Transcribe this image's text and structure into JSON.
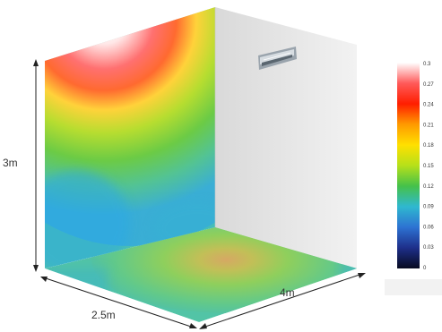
{
  "dimensions": {
    "height_label": "3m",
    "width_label": "2.5m",
    "depth_label": "4m"
  },
  "colorbar": {
    "ticks": [
      "0.3",
      "0.27",
      "0.24",
      "0.21",
      "0.18",
      "0.15",
      "0.12",
      "0.09",
      "0.06",
      "0.03",
      "0"
    ],
    "colors": [
      "#ffffff",
      "#ff6060",
      "#ff2a00",
      "#ff9a00",
      "#ffd400",
      "#b8e01a",
      "#59c63f",
      "#33b7c9",
      "#2f7fd6",
      "#25308a",
      "#0a0a2a"
    ]
  },
  "surfaces": {
    "left_wall_hotspot_color": "#ffffff",
    "left_wall_base_color": "#5ec8a8",
    "back_wall_color": "#e8e8e8",
    "floor_base_color": "#55c7a0",
    "floor_hotspot_color": "#c9b060"
  },
  "device": {
    "icon": "air-conditioner-icon"
  }
}
